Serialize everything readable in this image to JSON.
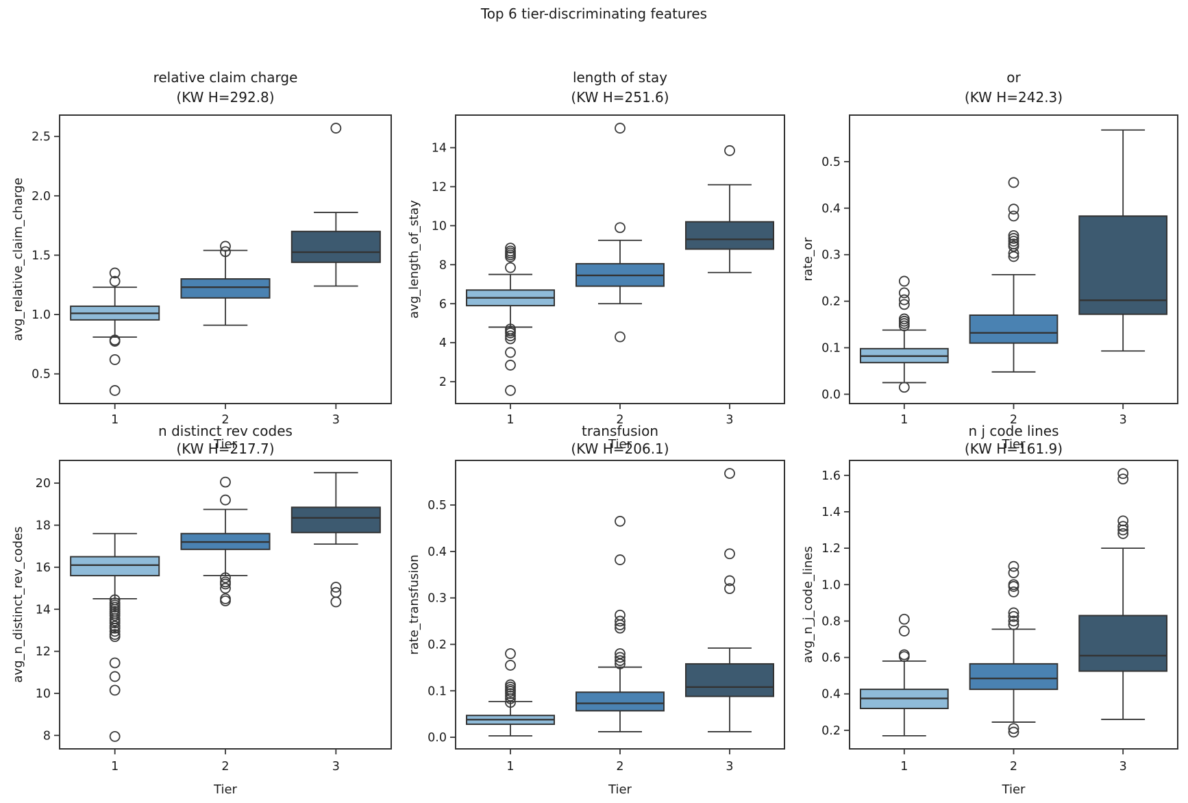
{
  "figure": {
    "suptitle": "Top 6 tier-discriminating features",
    "xlabel": "Tier",
    "categories": [
      "1",
      "2",
      "3"
    ]
  },
  "palette": {
    "tier_fills": [
      "#8FBBD9",
      "#4A82B2",
      "#3D5A70"
    ],
    "edge": "#333333",
    "text": "#1a1a1a"
  },
  "chart_data": [
    {
      "type": "box",
      "title": "relative claim charge",
      "subtitle": "(KW H=292.8)",
      "ylabel": "avg_relative_claim_charge",
      "xlabel": "Tier",
      "categories": [
        "1",
        "2",
        "3"
      ],
      "ylim": [
        0.25,
        2.68
      ],
      "yticks": [
        0.5,
        1.0,
        1.5,
        2.0,
        2.5
      ],
      "ytick_labels": [
        "0.5",
        "1.0",
        "1.5",
        "2.0",
        "2.5"
      ],
      "boxes": [
        {
          "tier": "1",
          "whislo": 0.81,
          "q1": 0.955,
          "med": 1.01,
          "q3": 1.07,
          "whishi": 1.23,
          "outliers": [
            1.35,
            1.28,
            0.785,
            0.775,
            0.62,
            0.36
          ]
        },
        {
          "tier": "2",
          "whislo": 0.91,
          "q1": 1.14,
          "med": 1.23,
          "q3": 1.3,
          "whishi": 1.54,
          "outliers": [
            1.575,
            1.53
          ]
        },
        {
          "tier": "3",
          "whislo": 1.24,
          "q1": 1.44,
          "med": 1.525,
          "q3": 1.7,
          "whishi": 1.86,
          "outliers": [
            2.57
          ]
        }
      ]
    },
    {
      "type": "box",
      "title": "length of stay",
      "subtitle": "(KW H=251.6)",
      "ylabel": "avg_length_of_stay",
      "xlabel": "Tier",
      "categories": [
        "1",
        "2",
        "3"
      ],
      "ylim": [
        0.88,
        15.67
      ],
      "yticks": [
        2,
        4,
        6,
        8,
        10,
        12,
        14
      ],
      "ytick_labels": [
        "2",
        "4",
        "6",
        "8",
        "10",
        "12",
        "14"
      ],
      "boxes": [
        {
          "tier": "1",
          "whislo": 4.8,
          "q1": 5.9,
          "med": 6.3,
          "q3": 6.7,
          "whishi": 7.5,
          "outliers": [
            8.85,
            8.7,
            8.6,
            8.5,
            8.4,
            7.85,
            4.7,
            4.6,
            4.5,
            4.35,
            4.2,
            3.5,
            2.85,
            1.55
          ]
        },
        {
          "tier": "2",
          "whislo": 6.0,
          "q1": 6.9,
          "med": 7.45,
          "q3": 8.05,
          "whishi": 9.25,
          "outliers": [
            15.0,
            9.9,
            4.3
          ]
        },
        {
          "tier": "3",
          "whislo": 7.6,
          "q1": 8.8,
          "med": 9.3,
          "q3": 10.2,
          "whishi": 12.1,
          "outliers": [
            13.85
          ]
        }
      ]
    },
    {
      "type": "box",
      "title": "or",
      "subtitle": "(KW H=242.3)",
      "ylabel": "rate_or",
      "xlabel": "Tier",
      "categories": [
        "1",
        "2",
        "3"
      ],
      "ylim": [
        -0.02,
        0.6
      ],
      "yticks": [
        0.0,
        0.1,
        0.2,
        0.3,
        0.4,
        0.5
      ],
      "ytick_labels": [
        "0.0",
        "0.1",
        "0.2",
        "0.3",
        "0.4",
        "0.5"
      ],
      "boxes": [
        {
          "tier": "1",
          "whislo": 0.025,
          "q1": 0.068,
          "med": 0.082,
          "q3": 0.098,
          "whishi": 0.138,
          "outliers": [
            0.243,
            0.218,
            0.203,
            0.193,
            0.162,
            0.157,
            0.152,
            0.147,
            0.015
          ]
        },
        {
          "tier": "2",
          "whislo": 0.048,
          "q1": 0.11,
          "med": 0.132,
          "q3": 0.17,
          "whishi": 0.257,
          "outliers": [
            0.455,
            0.398,
            0.383,
            0.341,
            0.335,
            0.329,
            0.323,
            0.318,
            0.303,
            0.296
          ]
        },
        {
          "tier": "3",
          "whislo": 0.093,
          "q1": 0.172,
          "med": 0.202,
          "q3": 0.383,
          "whishi": 0.568,
          "outliers": []
        }
      ]
    },
    {
      "type": "box",
      "title": "n distinct rev codes",
      "subtitle": "(KW H=217.7)",
      "ylabel": "avg_n_distinct_rev_codes",
      "xlabel": "Tier",
      "categories": [
        "1",
        "2",
        "3"
      ],
      "ylim": [
        7.36,
        21.08
      ],
      "yticks": [
        8,
        10,
        12,
        14,
        16,
        18,
        20
      ],
      "ytick_labels": [
        "8",
        "10",
        "12",
        "14",
        "16",
        "18",
        "20"
      ],
      "boxes": [
        {
          "tier": "1",
          "whislo": 14.5,
          "q1": 15.6,
          "med": 16.1,
          "q3": 16.5,
          "whishi": 17.6,
          "outliers": [
            14.45,
            14.3,
            14.2,
            14.1,
            14.0,
            13.9,
            13.8,
            13.7,
            13.55,
            13.45,
            13.35,
            13.2,
            13.1,
            12.95,
            12.8,
            12.7,
            11.45,
            10.8,
            10.15,
            7.95
          ]
        },
        {
          "tier": "2",
          "whislo": 15.6,
          "q1": 16.85,
          "med": 17.2,
          "q3": 17.6,
          "whishi": 18.75,
          "outliers": [
            20.05,
            19.2,
            15.5,
            15.3,
            15.2,
            15.0,
            14.5,
            14.4
          ]
        },
        {
          "tier": "3",
          "whislo": 17.1,
          "q1": 17.65,
          "med": 18.35,
          "q3": 18.85,
          "whishi": 20.5,
          "outliers": [
            15.05,
            14.8,
            14.35
          ]
        }
      ]
    },
    {
      "type": "box",
      "title": "transfusion",
      "subtitle": "(KW H=206.1)",
      "ylabel": "rate_transfusion",
      "xlabel": "Tier",
      "categories": [
        "1",
        "2",
        "3"
      ],
      "ylim": [
        -0.025,
        0.596
      ],
      "yticks": [
        0.0,
        0.1,
        0.2,
        0.3,
        0.4,
        0.5
      ],
      "ytick_labels": [
        "0.0",
        "0.1",
        "0.2",
        "0.3",
        "0.4",
        "0.5"
      ],
      "boxes": [
        {
          "tier": "1",
          "whislo": 0.003,
          "q1": 0.028,
          "med": 0.038,
          "q3": 0.047,
          "whishi": 0.077,
          "outliers": [
            0.18,
            0.155,
            0.113,
            0.108,
            0.103,
            0.099,
            0.094,
            0.089,
            0.083,
            0.075
          ]
        },
        {
          "tier": "2",
          "whislo": 0.012,
          "q1": 0.057,
          "med": 0.073,
          "q3": 0.097,
          "whishi": 0.151,
          "outliers": [
            0.465,
            0.382,
            0.263,
            0.25,
            0.242,
            0.235,
            0.18,
            0.172,
            0.165,
            0.158
          ]
        },
        {
          "tier": "3",
          "whislo": 0.012,
          "q1": 0.088,
          "med": 0.108,
          "q3": 0.158,
          "whishi": 0.192,
          "outliers": [
            0.568,
            0.395,
            0.337,
            0.32
          ]
        }
      ]
    },
    {
      "type": "box",
      "title": "n j code lines",
      "subtitle": "(KW H=161.9)",
      "ylabel": "avg_n_j_code_lines",
      "xlabel": "Tier",
      "categories": [
        "1",
        "2",
        "3"
      ],
      "ylim": [
        0.098,
        1.682
      ],
      "yticks": [
        0.2,
        0.4,
        0.6,
        0.8,
        1.0,
        1.2,
        1.4,
        1.6
      ],
      "ytick_labels": [
        "0.2",
        "0.4",
        "0.6",
        "0.8",
        "1.0",
        "1.2",
        "1.4",
        "1.6"
      ],
      "boxes": [
        {
          "tier": "1",
          "whislo": 0.17,
          "q1": 0.32,
          "med": 0.375,
          "q3": 0.425,
          "whishi": 0.58,
          "outliers": [
            0.81,
            0.745,
            0.615,
            0.605
          ]
        },
        {
          "tier": "2",
          "whislo": 0.245,
          "q1": 0.425,
          "med": 0.485,
          "q3": 0.565,
          "whishi": 0.755,
          "outliers": [
            1.1,
            1.065,
            1.0,
            0.99,
            0.96,
            0.845,
            0.825,
            0.8,
            0.78,
            0.21,
            0.19
          ]
        },
        {
          "tier": "3",
          "whislo": 0.26,
          "q1": 0.525,
          "med": 0.61,
          "q3": 0.83,
          "whishi": 1.2,
          "outliers": [
            1.61,
            1.58,
            1.35,
            1.32,
            1.3,
            1.28
          ]
        }
      ]
    }
  ]
}
